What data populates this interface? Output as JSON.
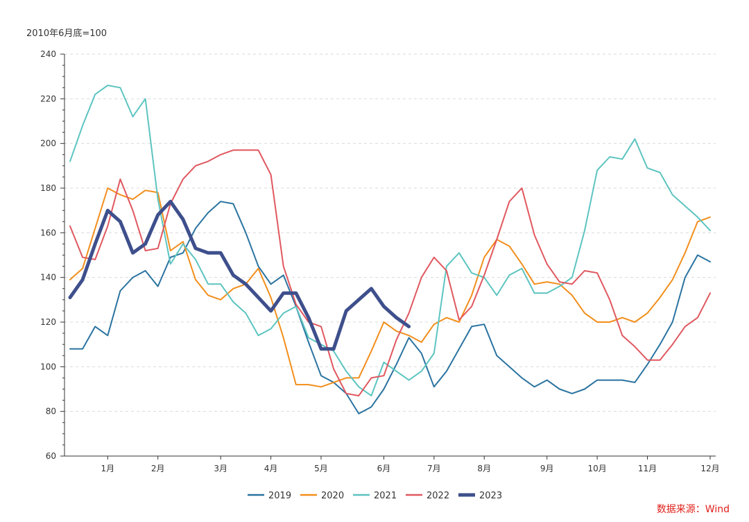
{
  "chart_data": {
    "type": "line",
    "unit_label": "2010年6月底=100",
    "source": "数据来源：Wind",
    "ylim": [
      60,
      240
    ],
    "yticks": [
      60,
      80,
      100,
      120,
      140,
      160,
      180,
      200,
      220,
      240
    ],
    "xlim": [
      0,
      51
    ],
    "month_ticks": [
      {
        "label": "1月",
        "x": 3
      },
      {
        "label": "2月",
        "x": 7
      },
      {
        "label": "3月",
        "x": 12
      },
      {
        "label": "4月",
        "x": 16
      },
      {
        "label": "5月",
        "x": 20
      },
      {
        "label": "6月",
        "x": 25
      },
      {
        "label": "7月",
        "x": 29
      },
      {
        "label": "8月",
        "x": 33
      },
      {
        "label": "9月",
        "x": 38
      },
      {
        "label": "10月",
        "x": 42
      },
      {
        "label": "11月",
        "x": 46
      },
      {
        "label": "12月",
        "x": 51
      }
    ],
    "grid": "horizontal-dashed",
    "legend_position": "bottom",
    "series": [
      {
        "name": "2019",
        "color": "#2a73a0",
        "width": 2,
        "x": [
          0,
          1,
          2,
          3,
          4,
          5,
          6,
          7,
          8,
          9,
          10,
          11,
          12,
          13,
          14,
          15,
          16,
          17,
          18,
          19,
          20,
          21,
          22,
          23,
          24,
          25,
          26,
          27,
          28,
          29,
          30,
          31,
          32,
          33,
          34,
          35,
          36,
          37,
          38,
          39,
          40,
          41,
          42,
          43,
          44,
          45,
          46,
          47,
          48,
          49,
          50,
          51
        ],
        "values": [
          108,
          108,
          118,
          114,
          134,
          140,
          143,
          136,
          149,
          151,
          162,
          169,
          174,
          173,
          160,
          145,
          137,
          141,
          127,
          111,
          96,
          93,
          88,
          79,
          82,
          90,
          101,
          113,
          106,
          91,
          98,
          108,
          118,
          119,
          105,
          100,
          95,
          91,
          94,
          90,
          88,
          90,
          94,
          94,
          94,
          93,
          101,
          110,
          120,
          140,
          150,
          147
        ]
      },
      {
        "name": "2020",
        "color": "#f28e1c",
        "width": 2,
        "x": [
          0,
          1,
          2,
          3,
          4,
          5,
          6,
          7,
          8,
          9,
          10,
          11,
          12,
          13,
          14,
          15,
          16,
          17,
          18,
          19,
          20,
          21,
          22,
          23,
          24,
          25,
          26,
          27,
          28,
          29,
          30,
          31,
          32,
          33,
          34,
          35,
          36,
          37,
          38,
          39,
          40,
          41,
          42,
          43,
          44,
          45,
          46,
          47,
          48,
          49,
          50,
          51
        ],
        "values": [
          139,
          144,
          162,
          180,
          177,
          175,
          179,
          178,
          152,
          156,
          139,
          132,
          130,
          135,
          137,
          144,
          131,
          113,
          92,
          92,
          91,
          93,
          95,
          95,
          107,
          120,
          116,
          114,
          111,
          119,
          122,
          120,
          132,
          149,
          157,
          154,
          146,
          137,
          138,
          137,
          132,
          124,
          120,
          120,
          122,
          120,
          124,
          131,
          139,
          151,
          165,
          167
        ]
      },
      {
        "name": "2021",
        "color": "#5cc4c0",
        "width": 2,
        "x": [
          0,
          1,
          2,
          3,
          4,
          5,
          6,
          7,
          8,
          9,
          10,
          11,
          12,
          13,
          14,
          15,
          16,
          17,
          18,
          19,
          20,
          21,
          22,
          23,
          24,
          25,
          26,
          27,
          28,
          29,
          30,
          31,
          32,
          33,
          34,
          35,
          36,
          37,
          38,
          39,
          40,
          41,
          42,
          43,
          44,
          45,
          46,
          47,
          48,
          49,
          50,
          51
        ],
        "values": [
          192,
          208,
          222,
          226,
          225,
          212,
          220,
          175,
          146,
          155,
          148,
          137,
          137,
          129,
          124,
          114,
          117,
          124,
          127,
          113,
          110,
          107,
          98,
          91,
          87,
          102,
          98,
          94,
          98,
          106,
          145,
          151,
          142,
          140,
          132,
          141,
          144,
          133,
          133,
          136,
          140,
          161,
          188,
          194,
          193,
          202,
          189,
          187,
          177,
          172,
          167,
          161
        ]
      },
      {
        "name": "2022",
        "color": "#e0575f",
        "width": 2,
        "x": [
          0,
          1,
          2,
          3,
          4,
          5,
          6,
          7,
          8,
          9,
          10,
          11,
          12,
          13,
          14,
          15,
          16,
          17,
          18,
          19,
          20,
          21,
          22,
          23,
          24,
          25,
          26,
          27,
          28,
          29,
          30,
          31,
          32,
          33,
          34,
          35,
          36,
          37,
          38,
          39,
          40,
          41,
          42,
          43,
          44,
          45,
          46,
          47,
          48,
          49,
          50,
          51
        ],
        "values": [
          163,
          149,
          148,
          163,
          184,
          170,
          152,
          153,
          173,
          184,
          190,
          192,
          195,
          197,
          197,
          197,
          186,
          145,
          128,
          120,
          118,
          99,
          88,
          87,
          95,
          96,
          112,
          124,
          140,
          149,
          143,
          121,
          127,
          141,
          157,
          174,
          180,
          159,
          146,
          138,
          137,
          143,
          142,
          130,
          114,
          109,
          103,
          103,
          110,
          118,
          122,
          133
        ]
      },
      {
        "name": "2023",
        "color": "#3e4f8c",
        "width": 5,
        "x": [
          0,
          1,
          2,
          3,
          4,
          5,
          6,
          7,
          8,
          9,
          10,
          11,
          12,
          13,
          14,
          15,
          16,
          17,
          18,
          19,
          20,
          21,
          22,
          23,
          24,
          25,
          26,
          27
        ],
        "values": [
          131,
          139,
          155,
          170,
          165,
          151,
          155,
          168,
          174,
          166,
          153,
          151,
          151,
          141,
          137,
          131,
          125,
          133,
          133,
          122,
          108,
          108,
          125,
          130,
          135,
          127,
          122,
          118
        ]
      }
    ]
  }
}
